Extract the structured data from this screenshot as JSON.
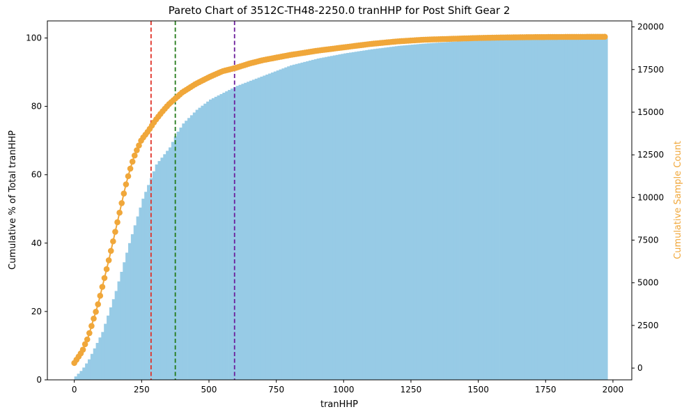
{
  "chart_data": {
    "type": "bar",
    "title": "Pareto Chart of 3512C-TH48-2250.0 tranHHP for Post Shift Gear 2",
    "xlabel": "tranHHP",
    "ylabel": "Cumulative % of Total tranHHP",
    "y2label": "Cumulative Sample Count",
    "xlim": [
      -100,
      2070
    ],
    "ylim": [
      0,
      105
    ],
    "y2lim": [
      -690,
      20350
    ],
    "xticks": [
      0,
      250,
      500,
      750,
      1000,
      1250,
      1500,
      1750,
      2000
    ],
    "yticks": [
      0,
      20,
      40,
      60,
      80,
      100
    ],
    "y2ticks": [
      0,
      2500,
      5000,
      7500,
      10000,
      12500,
      15000,
      17500,
      20000
    ],
    "grid": false,
    "series": [
      {
        "type": "bar",
        "axis": "left",
        "color": "#97CBE6",
        "bin_width": 10,
        "points": [
          [
            0,
            1
          ],
          [
            25,
            3
          ],
          [
            50,
            6
          ],
          [
            100,
            14
          ],
          [
            150,
            26
          ],
          [
            200,
            40
          ],
          [
            250,
            53
          ],
          [
            285,
            60
          ],
          [
            300,
            63
          ],
          [
            350,
            68
          ],
          [
            375,
            72
          ],
          [
            400,
            75
          ],
          [
            450,
            79
          ],
          [
            500,
            82
          ],
          [
            550,
            84
          ],
          [
            600,
            86
          ],
          [
            700,
            89
          ],
          [
            800,
            92
          ],
          [
            900,
            94
          ],
          [
            1000,
            95.5
          ],
          [
            1100,
            96.7
          ],
          [
            1200,
            97.7
          ],
          [
            1300,
            98.4
          ],
          [
            1400,
            98.9
          ],
          [
            1500,
            99.3
          ],
          [
            1600,
            99.6
          ],
          [
            1700,
            99.8
          ],
          [
            1800,
            99.9
          ],
          [
            1970,
            100
          ]
        ]
      },
      {
        "type": "line-markers",
        "axis": "right",
        "color": "#F0A73A",
        "points": [
          [
            0,
            300
          ],
          [
            15,
            650
          ],
          [
            30,
            1000
          ],
          [
            40,
            1400
          ],
          [
            50,
            1750
          ],
          [
            60,
            2250
          ],
          [
            70,
            2800
          ],
          [
            80,
            3300
          ],
          [
            90,
            3850
          ],
          [
            100,
            4500
          ],
          [
            110,
            5150
          ],
          [
            120,
            5800
          ],
          [
            130,
            6450
          ],
          [
            140,
            7150
          ],
          [
            150,
            7850
          ],
          [
            160,
            8550
          ],
          [
            170,
            9250
          ],
          [
            180,
            9950
          ],
          [
            190,
            10650
          ],
          [
            200,
            11250
          ],
          [
            210,
            11800
          ],
          [
            220,
            12300
          ],
          [
            230,
            12700
          ],
          [
            240,
            13050
          ],
          [
            250,
            13400
          ],
          [
            275,
            13900
          ],
          [
            300,
            14500
          ],
          [
            325,
            15000
          ],
          [
            350,
            15450
          ],
          [
            375,
            15800
          ],
          [
            400,
            16150
          ],
          [
            450,
            16650
          ],
          [
            500,
            17050
          ],
          [
            550,
            17400
          ],
          [
            600,
            17600
          ],
          [
            650,
            17850
          ],
          [
            700,
            18050
          ],
          [
            750,
            18200
          ],
          [
            800,
            18350
          ],
          [
            900,
            18600
          ],
          [
            1000,
            18800
          ],
          [
            1100,
            19000
          ],
          [
            1200,
            19150
          ],
          [
            1300,
            19250
          ],
          [
            1400,
            19300
          ],
          [
            1500,
            19350
          ],
          [
            1600,
            19380
          ],
          [
            1700,
            19400
          ],
          [
            1800,
            19410
          ],
          [
            1970,
            19420
          ]
        ]
      }
    ],
    "vlines": [
      {
        "x": 285,
        "color": "#E03127"
      },
      {
        "x": 375,
        "color": "#247A1A"
      },
      {
        "x": 595,
        "color": "#6A1B9A"
      }
    ]
  }
}
